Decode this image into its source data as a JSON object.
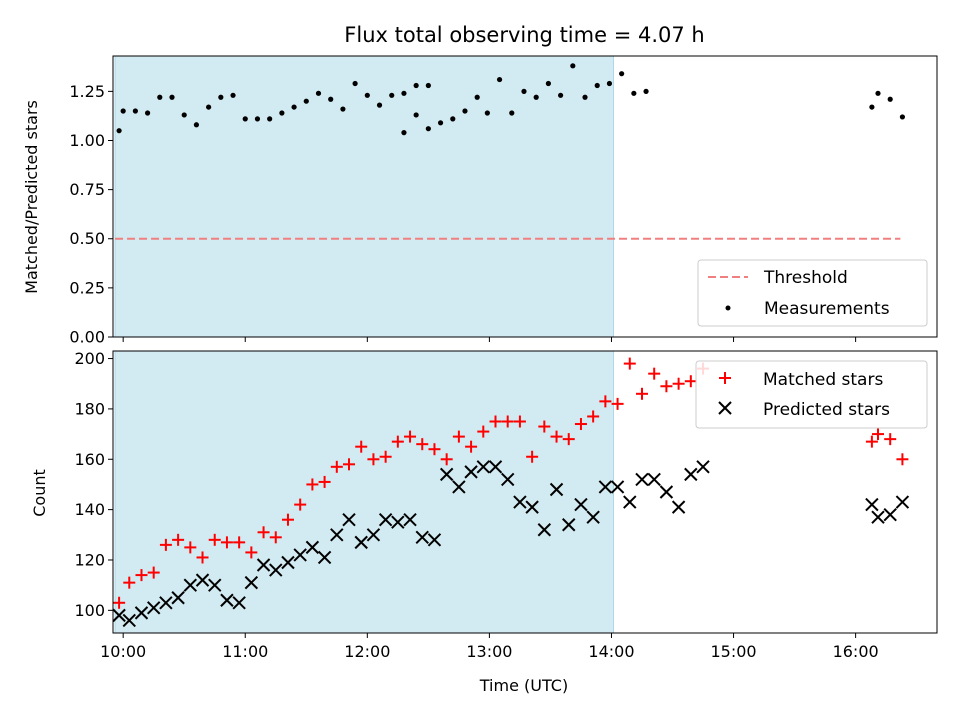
{
  "chart_data": [
    {
      "type": "scatter",
      "title": "Flux total observing time = 4.07 h",
      "ylabel": "Matched/Predicted stars",
      "xlabel": "",
      "xlim": [
        "09:55",
        "16:40"
      ],
      "ylim": [
        0,
        1.43
      ],
      "yticks": [
        "0.00",
        "0.25",
        "0.50",
        "0.75",
        "1.00",
        "1.25"
      ],
      "shaded_region": {
        "from": "09:56",
        "to": "14:01",
        "color": "#add8e6"
      },
      "threshold": {
        "name": "Threshold",
        "y": 0.5,
        "from": "09:56",
        "to": "16:22",
        "color": "#f08080"
      },
      "legend": {
        "placement": "lower-right",
        "entries": [
          "Threshold",
          "Measurements"
        ]
      },
      "series": [
        {
          "name": "Measurements",
          "color": "#000000",
          "points": [
            [
              "09:58",
              1.05
            ],
            [
              "10:00",
              1.15
            ],
            [
              "10:06",
              1.15
            ],
            [
              "10:12",
              1.14
            ],
            [
              "10:18",
              1.22
            ],
            [
              "10:24",
              1.22
            ],
            [
              "10:30",
              1.13
            ],
            [
              "10:36",
              1.08
            ],
            [
              "10:42",
              1.17
            ],
            [
              "10:48",
              1.22
            ],
            [
              "10:54",
              1.23
            ],
            [
              "11:00",
              1.11
            ],
            [
              "11:06",
              1.11
            ],
            [
              "11:12",
              1.11
            ],
            [
              "11:18",
              1.14
            ],
            [
              "11:24",
              1.17
            ],
            [
              "11:30",
              1.2
            ],
            [
              "11:36",
              1.24
            ],
            [
              "11:42",
              1.21
            ],
            [
              "11:48",
              1.16
            ],
            [
              "11:54",
              1.29
            ],
            [
              "12:00",
              1.23
            ],
            [
              "12:06",
              1.18
            ],
            [
              "12:12",
              1.23
            ],
            [
              "12:18",
              1.24
            ],
            [
              "12:24",
              1.28
            ],
            [
              "12:30",
              1.28
            ],
            [
              "12:18",
              1.04
            ],
            [
              "12:24",
              1.13
            ],
            [
              "12:30",
              1.06
            ],
            [
              "12:36",
              1.09
            ],
            [
              "12:42",
              1.11
            ],
            [
              "12:48",
              1.15
            ],
            [
              "12:54",
              1.22
            ],
            [
              "12:59",
              1.14
            ],
            [
              "13:05",
              1.31
            ],
            [
              "13:11",
              1.14
            ],
            [
              "13:17",
              1.25
            ],
            [
              "13:23",
              1.22
            ],
            [
              "13:29",
              1.29
            ],
            [
              "13:35",
              1.23
            ],
            [
              "13:41",
              1.38
            ],
            [
              "13:47",
              1.22
            ],
            [
              "13:53",
              1.28
            ],
            [
              "13:59",
              1.29
            ],
            [
              "14:05",
              1.34
            ],
            [
              "14:11",
              1.24
            ],
            [
              "14:17",
              1.25
            ],
            [
              "16:08",
              1.17
            ],
            [
              "16:11",
              1.24
            ],
            [
              "16:17",
              1.21
            ],
            [
              "16:23",
              1.12
            ]
          ]
        }
      ]
    },
    {
      "type": "scatter",
      "title": "",
      "xlabel": "Time (UTC)",
      "ylabel": "Count",
      "xlim": [
        "09:55",
        "16:40"
      ],
      "ylim": [
        91,
        203
      ],
      "xticks": [
        "10:00",
        "11:00",
        "12:00",
        "13:00",
        "14:00",
        "15:00",
        "16:00"
      ],
      "yticks": [
        "100",
        "120",
        "140",
        "160",
        "180",
        "200"
      ],
      "shaded_region": {
        "from": "09:56",
        "to": "14:01",
        "color": "#add8e6"
      },
      "legend": {
        "placement": "upper-right",
        "entries": [
          "Matched stars",
          "Predicted stars"
        ]
      },
      "series": [
        {
          "name": "Matched stars",
          "marker": "+",
          "color": "#ff0000",
          "points": [
            [
              "09:58",
              103
            ],
            [
              "10:03",
              111
            ],
            [
              "10:09",
              114
            ],
            [
              "10:15",
              115
            ],
            [
              "10:21",
              126
            ],
            [
              "10:27",
              128
            ],
            [
              "10:33",
              125
            ],
            [
              "10:39",
              121
            ],
            [
              "10:45",
              128
            ],
            [
              "10:51",
              127
            ],
            [
              "10:57",
              127
            ],
            [
              "11:03",
              123
            ],
            [
              "11:09",
              131
            ],
            [
              "11:15",
              129
            ],
            [
              "11:21",
              136
            ],
            [
              "11:27",
              142
            ],
            [
              "11:33",
              150
            ],
            [
              "11:39",
              151
            ],
            [
              "11:45",
              157
            ],
            [
              "11:51",
              158
            ],
            [
              "11:57",
              165
            ],
            [
              "12:03",
              160
            ],
            [
              "12:09",
              161
            ],
            [
              "12:15",
              167
            ],
            [
              "12:21",
              169
            ],
            [
              "12:27",
              166
            ],
            [
              "12:33",
              164
            ],
            [
              "12:39",
              160
            ],
            [
              "12:45",
              169
            ],
            [
              "12:51",
              165
            ],
            [
              "12:57",
              171
            ],
            [
              "13:03",
              175
            ],
            [
              "13:09",
              175
            ],
            [
              "13:15",
              175
            ],
            [
              "13:21",
              161
            ],
            [
              "13:27",
              173
            ],
            [
              "13:33",
              169
            ],
            [
              "13:39",
              168
            ],
            [
              "13:45",
              174
            ],
            [
              "13:51",
              177
            ],
            [
              "13:57",
              183
            ],
            [
              "14:03",
              182
            ],
            [
              "14:09",
              198
            ],
            [
              "14:15",
              186
            ],
            [
              "14:21",
              194
            ],
            [
              "14:27",
              189
            ],
            [
              "14:33",
              190
            ],
            [
              "14:39",
              191
            ],
            [
              "14:45",
              196
            ],
            [
              "16:08",
              167
            ],
            [
              "16:11",
              170
            ],
            [
              "16:17",
              168
            ],
            [
              "16:23",
              160
            ]
          ]
        },
        {
          "name": "Predicted stars",
          "marker": "x",
          "color": "#000000",
          "points": [
            [
              "09:58",
              98
            ],
            [
              "10:03",
              96
            ],
            [
              "10:09",
              99
            ],
            [
              "10:15",
              101
            ],
            [
              "10:21",
              103
            ],
            [
              "10:27",
              105
            ],
            [
              "10:33",
              110
            ],
            [
              "10:39",
              112
            ],
            [
              "10:45",
              110
            ],
            [
              "10:51",
              104
            ],
            [
              "10:57",
              103
            ],
            [
              "11:03",
              111
            ],
            [
              "11:09",
              118
            ],
            [
              "11:15",
              116
            ],
            [
              "11:21",
              119
            ],
            [
              "11:27",
              122
            ],
            [
              "11:33",
              125
            ],
            [
              "11:39",
              121
            ],
            [
              "11:45",
              130
            ],
            [
              "11:51",
              136
            ],
            [
              "11:57",
              127
            ],
            [
              "12:03",
              130
            ],
            [
              "12:09",
              136
            ],
            [
              "12:15",
              135
            ],
            [
              "12:21",
              136
            ],
            [
              "12:27",
              129
            ],
            [
              "12:33",
              128
            ],
            [
              "12:39",
              154
            ],
            [
              "12:45",
              149
            ],
            [
              "12:51",
              155
            ],
            [
              "12:57",
              157
            ],
            [
              "13:03",
              157
            ],
            [
              "13:09",
              152
            ],
            [
              "13:15",
              143
            ],
            [
              "13:21",
              141
            ],
            [
              "13:27",
              132
            ],
            [
              "13:33",
              148
            ],
            [
              "13:39",
              134
            ],
            [
              "13:45",
              142
            ],
            [
              "13:51",
              137
            ],
            [
              "13:57",
              149
            ],
            [
              "14:03",
              149
            ],
            [
              "14:09",
              143
            ],
            [
              "14:15",
              152
            ],
            [
              "14:21",
              152
            ],
            [
              "14:27",
              147
            ],
            [
              "14:33",
              141
            ],
            [
              "14:39",
              154
            ],
            [
              "14:45",
              157
            ],
            [
              "16:08",
              142
            ],
            [
              "16:11",
              137
            ],
            [
              "16:17",
              138
            ],
            [
              "16:23",
              143
            ]
          ]
        }
      ]
    }
  ]
}
